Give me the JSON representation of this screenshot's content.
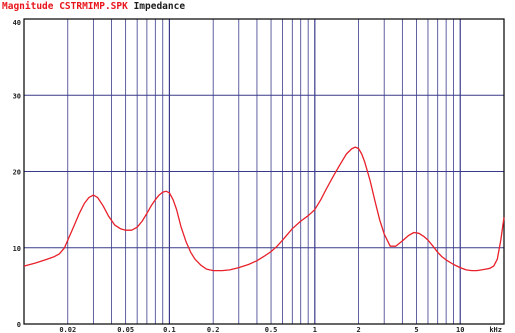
{
  "chart_data": {
    "type": "line",
    "title": "Magnitude CSTRMIMP.SPK",
    "title_suffix": "Impedance",
    "xlabel": "",
    "ylabel": "",
    "x_unit": "kHz",
    "x_scale": "log",
    "xlim": [
      0.01,
      20
    ],
    "ylim": [
      0,
      40
    ],
    "grid": true,
    "y_ticks": [
      {
        "value": 0,
        "label": "0"
      },
      {
        "value": 10,
        "label": "10"
      },
      {
        "value": 20,
        "label": "20"
      },
      {
        "value": 30,
        "label": "30"
      },
      {
        "value": 40,
        "label": "40"
      }
    ],
    "x_ticks": [
      {
        "value": 0.02,
        "label": "0.02"
      },
      {
        "value": 0.05,
        "label": "0.05"
      },
      {
        "value": 0.1,
        "label": "0.1"
      },
      {
        "value": 0.2,
        "label": "0.2"
      },
      {
        "value": 0.5,
        "label": "0.5"
      },
      {
        "value": 1,
        "label": "1"
      },
      {
        "value": 2,
        "label": "2"
      },
      {
        "value": 5,
        "label": "5"
      },
      {
        "value": 10,
        "label": "10"
      }
    ],
    "series": [
      {
        "color": "#e8202a",
        "x": [
          0.01,
          0.012,
          0.014,
          0.016,
          0.0175,
          0.019,
          0.02,
          0.022,
          0.024,
          0.026,
          0.028,
          0.03,
          0.032,
          0.035,
          0.038,
          0.042,
          0.046,
          0.05,
          0.055,
          0.06,
          0.065,
          0.07,
          0.075,
          0.08,
          0.085,
          0.09,
          0.095,
          0.1,
          0.106,
          0.112,
          0.12,
          0.13,
          0.14,
          0.15,
          0.165,
          0.18,
          0.2,
          0.23,
          0.26,
          0.3,
          0.35,
          0.4,
          0.45,
          0.5,
          0.55,
          0.6,
          0.7,
          0.8,
          0.9,
          1.0,
          1.1,
          1.2,
          1.35,
          1.5,
          1.65,
          1.8,
          1.9,
          2.0,
          2.1,
          2.2,
          2.4,
          2.6,
          2.8,
          3.0,
          3.3,
          3.6,
          4.0,
          4.4,
          4.8,
          5.2,
          5.6,
          6.0,
          6.5,
          7.0,
          7.5,
          8.0,
          9.0,
          10,
          11,
          12,
          13,
          14,
          15,
          16,
          17,
          18,
          19,
          20
        ],
        "y": [
          7.6,
          8.0,
          8.4,
          8.8,
          9.2,
          10.0,
          11.0,
          12.8,
          14.5,
          15.8,
          16.6,
          16.9,
          16.6,
          15.5,
          14.2,
          13.0,
          12.5,
          12.3,
          12.3,
          12.7,
          13.5,
          14.5,
          15.5,
          16.3,
          16.9,
          17.3,
          17.4,
          17.2,
          16.3,
          15.0,
          12.8,
          10.8,
          9.4,
          8.5,
          7.7,
          7.2,
          7.0,
          7.0,
          7.1,
          7.4,
          7.8,
          8.3,
          8.9,
          9.5,
          10.2,
          11.0,
          12.5,
          13.5,
          14.2,
          15.0,
          16.3,
          17.7,
          19.5,
          21.0,
          22.3,
          23.0,
          23.2,
          23.0,
          22.3,
          21.3,
          18.8,
          16.0,
          13.6,
          11.8,
          10.2,
          10.2,
          10.9,
          11.6,
          12.0,
          11.9,
          11.5,
          11.0,
          10.2,
          9.4,
          8.8,
          8.4,
          7.8,
          7.4,
          7.1,
          7.0,
          7.0,
          7.1,
          7.2,
          7.3,
          7.6,
          8.5,
          11.0,
          14.0
        ]
      }
    ]
  }
}
